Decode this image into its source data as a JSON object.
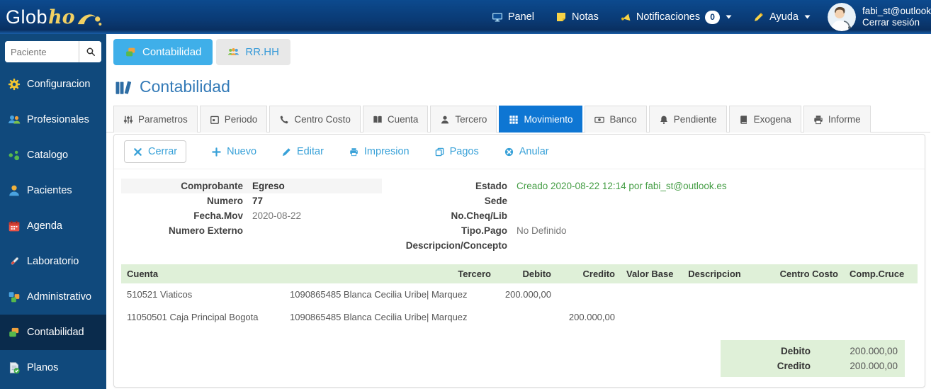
{
  "navbar": {
    "logo_part1": "Glob",
    "logo_part2": "ho",
    "items": [
      {
        "label": "Panel",
        "icon": "monitor-icon"
      },
      {
        "label": "Notas",
        "icon": "note-icon"
      },
      {
        "label": "Notificaciones",
        "icon": "megaphone-icon",
        "badge": "0",
        "caret": true
      },
      {
        "label": "Ayuda",
        "icon": "pencil-yellow-icon",
        "caret": true
      }
    ],
    "user": {
      "email": "fabi_st@outlook",
      "logout_label": "Cerrar sesión"
    }
  },
  "sidebar": {
    "search_placeholder": "Paciente",
    "items": [
      {
        "label": "Configuracion",
        "icon": "gear-icon"
      },
      {
        "label": "Profesionales",
        "icon": "professionals-icon"
      },
      {
        "label": "Catalogo",
        "icon": "catalog-icon"
      },
      {
        "label": "Pacientes",
        "icon": "patient-icon"
      },
      {
        "label": "Agenda",
        "icon": "calendar-red-icon"
      },
      {
        "label": "Laboratorio",
        "icon": "lab-icon"
      },
      {
        "label": "Administrativo",
        "icon": "blocks-icon"
      },
      {
        "label": "Contabilidad",
        "icon": "layers-icon",
        "active": true
      },
      {
        "label": "Planos",
        "icon": "doc-check-icon"
      }
    ]
  },
  "app_tabs": [
    {
      "label": "Contabilidad",
      "icon": "layers-icon",
      "active": true
    },
    {
      "label": "RR.HH",
      "icon": "team-icon"
    }
  ],
  "page": {
    "title": "Contabilidad"
  },
  "module_tabs": [
    {
      "label": "Parametros",
      "icon": "sliders-icon"
    },
    {
      "label": "Periodo",
      "icon": "period-icon"
    },
    {
      "label": "Centro Costo",
      "icon": "phone-icon"
    },
    {
      "label": "Cuenta",
      "icon": "book-icon"
    },
    {
      "label": "Tercero",
      "icon": "person-icon"
    },
    {
      "label": "Movimiento",
      "icon": "grid-icon",
      "active": true
    },
    {
      "label": "Banco",
      "icon": "banknote-icon"
    },
    {
      "label": "Pendiente",
      "icon": "bell-icon"
    },
    {
      "label": "Exogena",
      "icon": "ledger-icon"
    },
    {
      "label": "Informe",
      "icon": "printer-icon"
    }
  ],
  "toolbar": [
    {
      "label": "Cerrar",
      "icon": "x-icon",
      "style": "button"
    },
    {
      "label": "Nuevo",
      "icon": "plus-icon"
    },
    {
      "label": "Editar",
      "icon": "edit-icon"
    },
    {
      "label": "Impresion",
      "icon": "printer-icon"
    },
    {
      "label": "Pagos",
      "icon": "copy-icon"
    },
    {
      "label": "Anular",
      "icon": "cancel-icon"
    }
  ],
  "detail": {
    "left": [
      {
        "label": "Comprobante",
        "value": "Egreso",
        "bold": true,
        "striped": true
      },
      {
        "label": "Numero",
        "value": "77",
        "bold": true
      },
      {
        "label": "Fecha.Mov",
        "value": "2020-08-22"
      },
      {
        "label": "Numero Externo",
        "value": ""
      }
    ],
    "right": [
      {
        "label": "Estado",
        "value": "Creado 2020-08-22 12:14 por fabi_st@outlook.es",
        "green": true
      },
      {
        "label": "Sede",
        "value": ""
      },
      {
        "label": "No.Cheq/Lib",
        "value": ""
      },
      {
        "label": "Tipo.Pago",
        "value": "No Definido"
      },
      {
        "label": "Descripcion/Concepto",
        "value": ""
      }
    ]
  },
  "movements": {
    "headers": [
      "Cuenta",
      "Tercero",
      "Debito",
      "Credito",
      "Valor Base",
      "Descripcion",
      "Centro Costo",
      "Comp.Cruce"
    ],
    "rows": [
      [
        "510521 Viaticos",
        "1090865485 Blanca Cecilia Uribe| Marquez",
        "200.000,00",
        "",
        "",
        "",
        "",
        ""
      ],
      [
        "11050501 Caja Principal Bogota",
        "1090865485 Blanca Cecilia Uribe| Marquez",
        "",
        "200.000,00",
        "",
        "",
        "",
        ""
      ]
    ]
  },
  "totals": [
    {
      "label": "Debito",
      "value": "200.000,00"
    },
    {
      "label": "Credito",
      "value": "200.000,00"
    }
  ],
  "colors": {
    "navbar_top": "#0c4a8e",
    "navbar_bottom": "#093061",
    "sidebar": "#10497c",
    "sidebar_active": "#0a2b4c",
    "app_tab_active": "#3fafe9",
    "module_tab_active": "#0e76d3",
    "toolbar_link": "#38a1d8",
    "title": "#337ab7",
    "status_green": "#449d44",
    "table_header_bg": "#dff0d8"
  }
}
